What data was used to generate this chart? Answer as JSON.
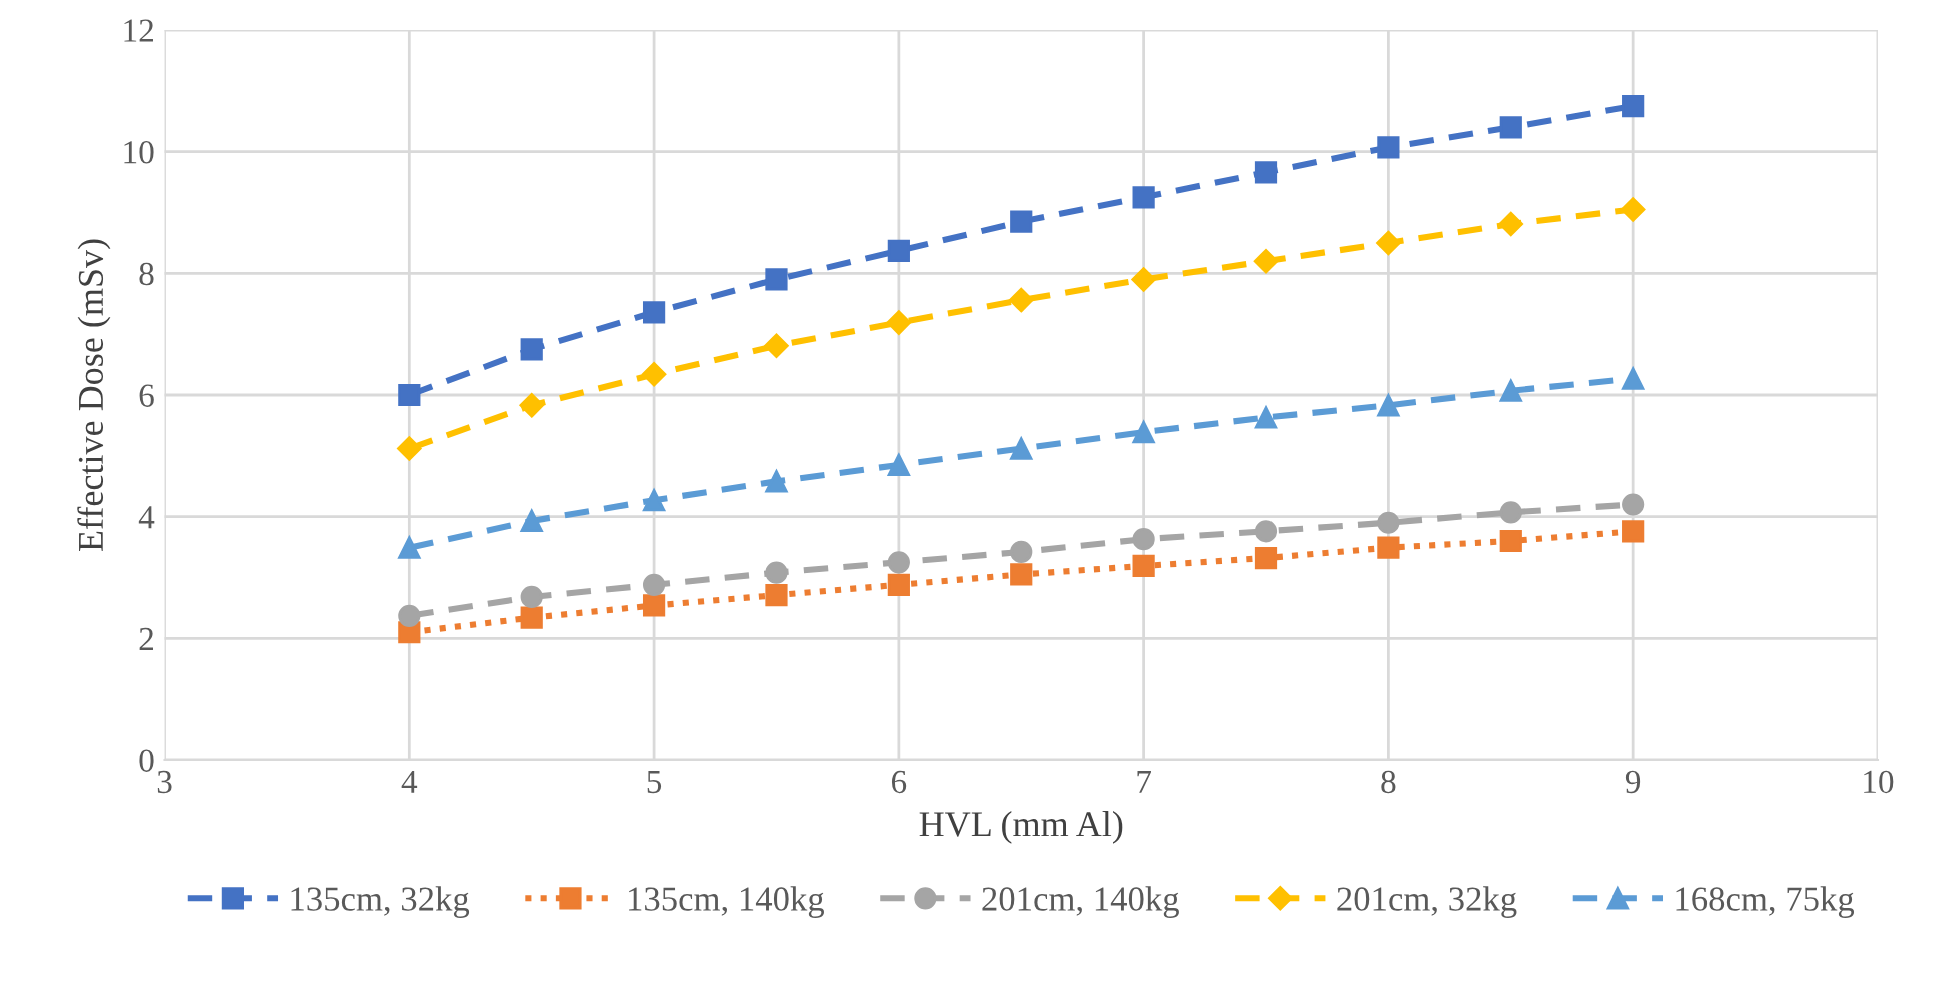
{
  "chart_data": {
    "type": "line",
    "xlabel": "HVL (mm Al)",
    "ylabel": "Effective Dose (mSv)",
    "x": [
      4,
      4.5,
      5,
      5.5,
      6,
      6.5,
      7,
      7.5,
      8,
      8.5,
      9
    ],
    "xlim": [
      3,
      10
    ],
    "xticks": [
      3,
      4,
      5,
      6,
      7,
      8,
      9,
      10
    ],
    "ylim": [
      0,
      12
    ],
    "yticks": [
      0,
      2,
      4,
      6,
      8,
      10,
      12
    ],
    "grid": true,
    "legend": "bottom",
    "series": [
      {
        "name": "135cm, 32kg",
        "color": "#4472c4",
        "marker": "square",
        "line_style": "dashed",
        "values": [
          6.0,
          6.75,
          7.36,
          7.9,
          8.37,
          8.85,
          9.25,
          9.66,
          10.07,
          10.4,
          10.75
        ]
      },
      {
        "name": "135cm, 140kg",
        "color": "#ed7d31",
        "marker": "square",
        "line_style": "dotted",
        "values": [
          2.1,
          2.34,
          2.54,
          2.71,
          2.88,
          3.05,
          3.19,
          3.32,
          3.49,
          3.6,
          3.76
        ]
      },
      {
        "name": "201cm, 140kg",
        "color": "#a5a5a5",
        "marker": "circle",
        "line_style": "dashed",
        "values": [
          2.37,
          2.68,
          2.88,
          3.08,
          3.25,
          3.42,
          3.63,
          3.76,
          3.9,
          4.07,
          4.2
        ]
      },
      {
        "name": "201cm, 32kg",
        "color": "#ffc000",
        "marker": "diamond",
        "line_style": "dashed",
        "values": [
          5.12,
          5.83,
          6.34,
          6.81,
          7.19,
          7.56,
          7.9,
          8.2,
          8.5,
          8.81,
          9.05
        ]
      },
      {
        "name": "168cm, 75kg",
        "color": "#5b9bd5",
        "marker": "triangle",
        "line_style": "dashed",
        "values": [
          3.49,
          3.93,
          4.27,
          4.58,
          4.85,
          5.12,
          5.39,
          5.63,
          5.83,
          6.07,
          6.27
        ]
      }
    ]
  }
}
